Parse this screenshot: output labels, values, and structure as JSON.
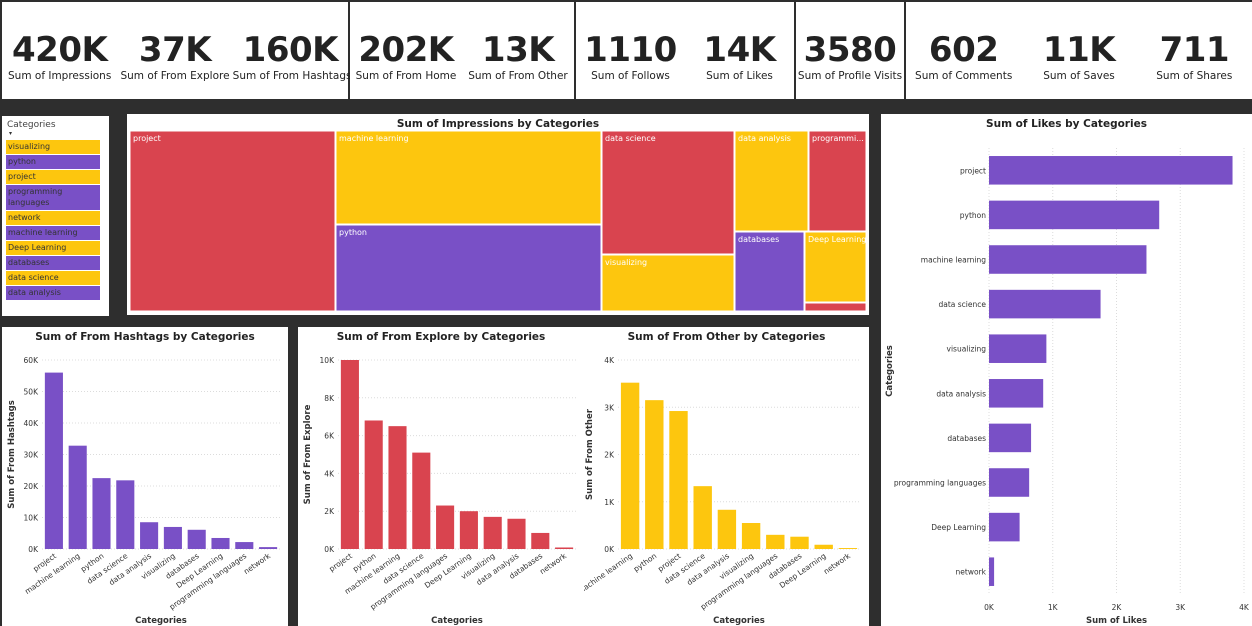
{
  "kpis": [
    {
      "value": "420K",
      "label": "Sum of Impressions"
    },
    {
      "value": "37K",
      "label": "Sum of From Explore"
    },
    {
      "value": "160K",
      "label": "Sum of From Hashtags"
    },
    {
      "value": "202K",
      "label": "Sum of From Home"
    },
    {
      "value": "13K",
      "label": "Sum of From Other"
    },
    {
      "value": "1110",
      "label": "Sum of Follows"
    },
    {
      "value": "14K",
      "label": "Sum of Likes"
    },
    {
      "value": "3580",
      "label": "Sum of Profile Visits"
    },
    {
      "value": "602",
      "label": "Sum of Comments"
    },
    {
      "value": "11K",
      "label": "Sum of Saves"
    },
    {
      "value": "711",
      "label": "Sum of Shares"
    }
  ],
  "slicer": {
    "title": "Categories",
    "items": [
      "visualizing",
      "python",
      "project",
      "programming languages",
      "network",
      "machine learning",
      "Deep Learning",
      "databases",
      "data science",
      "data analysis"
    ]
  },
  "colors": {
    "red": "#d9444f",
    "yellow": "#fdc60e",
    "purple": "#7950c6"
  },
  "chart_data": [
    {
      "type": "treemap",
      "title": "Sum of Impressions by Categories",
      "categories": [
        "project",
        "machine learning",
        "python",
        "data science",
        "visualizing",
        "data analysis",
        "programmi...",
        "databases",
        "Deep Learning"
      ]
    },
    {
      "type": "bar",
      "orientation": "horizontal",
      "title": "Sum of Likes by Categories",
      "xlabel": "Sum of Likes",
      "ylabel": "Categories",
      "categories": [
        "project",
        "python",
        "machine learning",
        "data science",
        "visualizing",
        "data analysis",
        "databases",
        "programming languages",
        "Deep Learning",
        "network"
      ],
      "values": [
        3820,
        2670,
        2470,
        1750,
        900,
        850,
        660,
        630,
        480,
        80
      ],
      "xlim": [
        0,
        4000
      ],
      "ticks": [
        "0K",
        "1K",
        "2K",
        "3K",
        "4K"
      ],
      "color": "#7950c6"
    },
    {
      "type": "bar",
      "title": "Sum of From Hashtags by Categories",
      "xlabel": "Categories",
      "ylabel": "Sum of From Hashtags",
      "categories": [
        "project",
        "machine learning",
        "python",
        "data science",
        "data analysis",
        "visualizing",
        "databases",
        "Deep Learning",
        "programming languages",
        "network"
      ],
      "values": [
        56000,
        32800,
        22500,
        21800,
        8500,
        7000,
        6100,
        3500,
        2200,
        600
      ],
      "ylim": [
        0,
        60000
      ],
      "ticks": [
        "0K",
        "10K",
        "20K",
        "30K",
        "40K",
        "50K",
        "60K"
      ],
      "color": "#7950c6"
    },
    {
      "type": "bar",
      "title": "Sum of From Explore by Categories",
      "xlabel": "Categories",
      "ylabel": "Sum of From Explore",
      "categories": [
        "project",
        "python",
        "machine learning",
        "data science",
        "programming languages",
        "Deep Learning",
        "visualizing",
        "data analysis",
        "databases",
        "network"
      ],
      "values": [
        10000,
        6800,
        6500,
        5100,
        2300,
        2000,
        1700,
        1600,
        850,
        80
      ],
      "ylim": [
        0,
        10000
      ],
      "ticks": [
        "0K",
        "2K",
        "4K",
        "6K",
        "8K",
        "10K"
      ],
      "color": "#d9444f"
    },
    {
      "type": "bar",
      "title": "Sum of From Other by Categories",
      "xlabel": "Categories",
      "ylabel": "Sum of From Other",
      "categories": [
        "machine learning",
        "python",
        "project",
        "data science",
        "data analysis",
        "visualizing",
        "programming languages",
        "databases",
        "Deep Learning",
        "network"
      ],
      "values": [
        3520,
        3150,
        2920,
        1330,
        830,
        550,
        300,
        260,
        90,
        20
      ],
      "ylim": [
        0,
        4000
      ],
      "ticks": [
        "0K",
        "1K",
        "2K",
        "3K",
        "4K"
      ],
      "color": "#fdc60e"
    }
  ]
}
